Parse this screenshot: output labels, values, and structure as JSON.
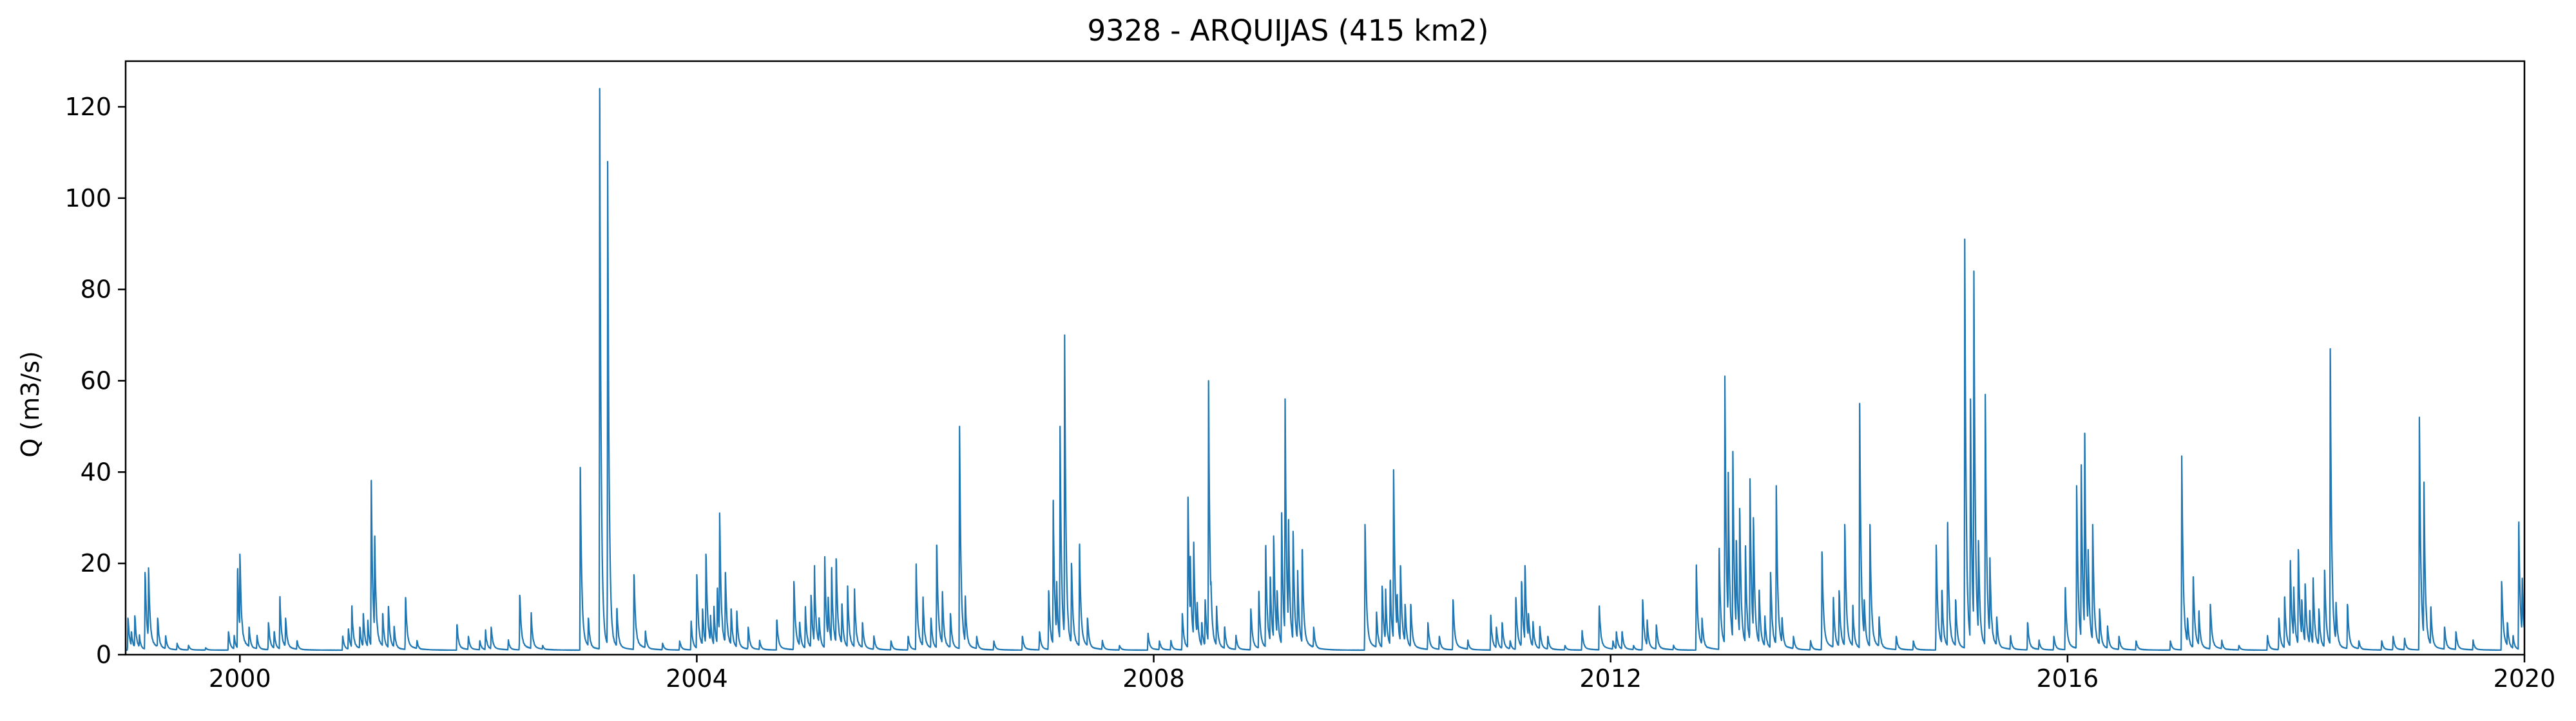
{
  "chart_data": {
    "type": "line",
    "title": "9328 - ARQUIJAS (415 km2)",
    "xlabel": "",
    "ylabel": "Q (m3/s)",
    "xlim": [
      1999.0,
      2020.0
    ],
    "ylim": [
      0,
      130
    ],
    "x_ticks": [
      2000,
      2004,
      2008,
      2012,
      2016,
      2020
    ],
    "x_tick_labels": [
      "2000",
      "2004",
      "2008",
      "2012",
      "2016",
      "2020"
    ],
    "y_ticks": [
      0,
      20,
      40,
      60,
      80,
      100,
      120
    ],
    "y_tick_labels": [
      "0",
      "20",
      "40",
      "60",
      "80",
      "100",
      "120"
    ],
    "grid": false,
    "legend": "none",
    "color": "#1f77b4",
    "baseflow": 1.0,
    "series": [
      {
        "peaks": [
          [
            1999.02,
            8
          ],
          [
            1999.05,
            5
          ],
          [
            1999.08,
            8.5
          ],
          [
            1999.12,
            4
          ],
          [
            1999.17,
            18
          ],
          [
            1999.2,
            19
          ],
          [
            1999.28,
            8
          ],
          [
            1999.35,
            4
          ],
          [
            1999.45,
            2.5
          ],
          [
            1999.55,
            2
          ],
          [
            1999.9,
            5
          ],
          [
            1999.95,
            4
          ],
          [
            1999.98,
            18
          ],
          [
            2000.0,
            22
          ],
          [
            2000.08,
            6
          ],
          [
            2000.15,
            4
          ],
          [
            2000.25,
            7
          ],
          [
            2000.3,
            5
          ],
          [
            2000.35,
            12
          ],
          [
            2000.4,
            8
          ],
          [
            2000.5,
            3
          ],
          [
            2000.9,
            4
          ],
          [
            2000.95,
            5.5
          ],
          [
            2000.98,
            10
          ],
          [
            2001.05,
            6
          ],
          [
            2001.08,
            9
          ],
          [
            2001.12,
            7
          ],
          [
            2001.15,
            38
          ],
          [
            2001.18,
            25
          ],
          [
            2001.25,
            9
          ],
          [
            2001.3,
            10.5
          ],
          [
            2001.35,
            6
          ],
          [
            2001.45,
            12.5
          ],
          [
            2001.55,
            3
          ],
          [
            1999.7,
            1.5
          ],
          [
            2001.9,
            6.5
          ],
          [
            2002.0,
            4
          ],
          [
            2002.1,
            3
          ],
          [
            2002.15,
            5
          ],
          [
            2002.2,
            6
          ],
          [
            2002.35,
            3
          ],
          [
            2002.45,
            13
          ],
          [
            2002.55,
            8.5
          ],
          [
            2002.65,
            2
          ],
          [
            2002.98,
            41
          ],
          [
            2003.05,
            8
          ],
          [
            2003.15,
            124
          ],
          [
            2003.22,
            108
          ],
          [
            2003.3,
            10
          ],
          [
            2003.45,
            17.5
          ],
          [
            2003.55,
            5
          ],
          [
            2003.7,
            2.5
          ],
          [
            2003.85,
            3
          ],
          [
            2003.95,
            7
          ],
          [
            2004.0,
            17.5
          ],
          [
            2004.05,
            10
          ],
          [
            2004.08,
            22
          ],
          [
            2004.12,
            8
          ],
          [
            2004.15,
            10
          ],
          [
            2004.18,
            14
          ],
          [
            2004.2,
            31
          ],
          [
            2004.25,
            18
          ],
          [
            2004.3,
            10
          ],
          [
            2004.35,
            9
          ],
          [
            2004.45,
            6
          ],
          [
            2004.55,
            3
          ],
          [
            2004.7,
            7.5
          ],
          [
            2004.85,
            16
          ],
          [
            2004.9,
            7
          ],
          [
            2004.95,
            10
          ],
          [
            2005.0,
            13
          ],
          [
            2005.03,
            17.5
          ],
          [
            2005.07,
            8
          ],
          [
            2005.12,
            20
          ],
          [
            2005.15,
            12
          ],
          [
            2005.18,
            18
          ],
          [
            2005.22,
            21
          ],
          [
            2005.27,
            11
          ],
          [
            2005.32,
            14
          ],
          [
            2005.38,
            13.5
          ],
          [
            2005.45,
            7
          ],
          [
            2005.55,
            4
          ],
          [
            2005.7,
            3
          ],
          [
            2005.85,
            4
          ],
          [
            2005.92,
            18.5
          ],
          [
            2005.98,
            12
          ],
          [
            2006.05,
            8
          ],
          [
            2006.1,
            24
          ],
          [
            2006.15,
            13
          ],
          [
            2006.22,
            9
          ],
          [
            2006.3,
            50
          ],
          [
            2006.35,
            12
          ],
          [
            2006.45,
            4
          ],
          [
            2006.6,
            3
          ],
          [
            2006.85,
            4
          ],
          [
            2007.0,
            5
          ],
          [
            2007.08,
            14
          ],
          [
            2007.12,
            33
          ],
          [
            2007.15,
            15
          ],
          [
            2007.18,
            50
          ],
          [
            2007.22,
            70
          ],
          [
            2007.28,
            20
          ],
          [
            2007.35,
            23
          ],
          [
            2007.42,
            8
          ],
          [
            2007.55,
            3
          ],
          [
            2007.7,
            2
          ],
          [
            2007.95,
            4.5
          ],
          [
            2008.05,
            3
          ],
          [
            2008.15,
            3
          ],
          [
            2008.25,
            9
          ],
          [
            2008.3,
            34.5
          ],
          [
            2008.32,
            20
          ],
          [
            2008.35,
            23.5
          ],
          [
            2008.38,
            11
          ],
          [
            2008.42,
            7
          ],
          [
            2008.45,
            12
          ],
          [
            2008.48,
            60
          ],
          [
            2008.5,
            16
          ],
          [
            2008.55,
            10
          ],
          [
            2008.62,
            6
          ],
          [
            2008.72,
            4
          ],
          [
            2008.85,
            10
          ],
          [
            2008.92,
            13
          ],
          [
            2008.98,
            23
          ],
          [
            2009.02,
            17
          ],
          [
            2009.05,
            26
          ],
          [
            2009.08,
            14
          ],
          [
            2009.12,
            30
          ],
          [
            2009.15,
            56
          ],
          [
            2009.18,
            29
          ],
          [
            2009.22,
            27
          ],
          [
            2009.26,
            17
          ],
          [
            2009.3,
            23
          ],
          [
            2009.4,
            6
          ],
          [
            2009.85,
            28.5
          ],
          [
            2009.95,
            9
          ],
          [
            2010.0,
            15
          ],
          [
            2010.03,
            13
          ],
          [
            2010.07,
            16
          ],
          [
            2010.1,
            40.5
          ],
          [
            2010.13,
            13
          ],
          [
            2010.16,
            19.5
          ],
          [
            2010.2,
            11
          ],
          [
            2010.25,
            11
          ],
          [
            2010.4,
            7
          ],
          [
            2010.5,
            4
          ],
          [
            2010.62,
            12
          ],
          [
            2010.75,
            3
          ],
          [
            2010.95,
            8
          ],
          [
            2011.0,
            6
          ],
          [
            2011.05,
            7
          ],
          [
            2011.12,
            3
          ],
          [
            2011.17,
            12.5
          ],
          [
            2011.22,
            16
          ],
          [
            2011.25,
            19.5
          ],
          [
            2011.28,
            9
          ],
          [
            2011.32,
            7
          ],
          [
            2011.38,
            6
          ],
          [
            2011.45,
            4
          ],
          [
            2011.6,
            2
          ],
          [
            2011.75,
            5
          ],
          [
            2011.9,
            10.5
          ],
          [
            2012.02,
            3
          ],
          [
            2012.05,
            5
          ],
          [
            2012.1,
            5
          ],
          [
            2012.2,
            2
          ],
          [
            2012.28,
            12
          ],
          [
            2012.32,
            7
          ],
          [
            2012.4,
            6.5
          ],
          [
            2012.55,
            2
          ],
          [
            2012.75,
            18.5
          ],
          [
            2012.8,
            8
          ],
          [
            2012.95,
            22
          ],
          [
            2013.0,
            61
          ],
          [
            2013.03,
            38
          ],
          [
            2013.07,
            44.5
          ],
          [
            2013.1,
            25
          ],
          [
            2013.13,
            32
          ],
          [
            2013.18,
            23
          ],
          [
            2013.22,
            38.5
          ],
          [
            2013.25,
            30
          ],
          [
            2013.3,
            14
          ],
          [
            2013.35,
            8
          ],
          [
            2013.4,
            18
          ],
          [
            2013.45,
            37
          ],
          [
            2013.5,
            8
          ],
          [
            2013.6,
            4
          ],
          [
            2013.75,
            3
          ],
          [
            2013.85,
            22.5
          ],
          [
            2013.95,
            12
          ],
          [
            2014.0,
            14
          ],
          [
            2014.05,
            28.5
          ],
          [
            2014.12,
            10
          ],
          [
            2014.18,
            55
          ],
          [
            2014.22,
            12
          ],
          [
            2014.27,
            28.5
          ],
          [
            2014.35,
            8
          ],
          [
            2014.5,
            4
          ],
          [
            2014.65,
            3
          ],
          [
            2014.85,
            24
          ],
          [
            2014.9,
            14
          ],
          [
            2014.95,
            28
          ],
          [
            2015.02,
            12
          ],
          [
            2015.1,
            91
          ],
          [
            2015.15,
            56
          ],
          [
            2015.18,
            84
          ],
          [
            2015.22,
            25
          ],
          [
            2015.28,
            57
          ],
          [
            2015.32,
            20
          ],
          [
            2015.38,
            8
          ],
          [
            2015.5,
            4
          ],
          [
            2015.65,
            7
          ],
          [
            2015.75,
            3
          ],
          [
            2015.88,
            4
          ],
          [
            2015.98,
            14
          ],
          [
            2016.08,
            37
          ],
          [
            2016.12,
            41
          ],
          [
            2016.15,
            48.5
          ],
          [
            2016.18,
            22
          ],
          [
            2016.22,
            28.5
          ],
          [
            2016.28,
            10
          ],
          [
            2016.35,
            6
          ],
          [
            2016.45,
            4
          ],
          [
            2016.6,
            3
          ],
          [
            2016.9,
            3
          ],
          [
            2017.0,
            43.5
          ],
          [
            2017.05,
            8
          ],
          [
            2017.1,
            17
          ],
          [
            2017.15,
            9
          ],
          [
            2017.25,
            11
          ],
          [
            2017.35,
            3
          ],
          [
            2017.5,
            2
          ],
          [
            2017.75,
            4
          ],
          [
            2017.85,
            8
          ],
          [
            2017.9,
            12.5
          ],
          [
            2017.95,
            19.5
          ],
          [
            2017.98,
            14
          ],
          [
            2018.02,
            23
          ],
          [
            2018.05,
            12
          ],
          [
            2018.08,
            15.5
          ],
          [
            2018.12,
            9
          ],
          [
            2018.15,
            16
          ],
          [
            2018.2,
            10
          ],
          [
            2018.25,
            18.5
          ],
          [
            2018.3,
            67
          ],
          [
            2018.35,
            11
          ],
          [
            2018.45,
            11
          ],
          [
            2018.55,
            3
          ],
          [
            2018.75,
            3
          ],
          [
            2018.85,
            4
          ],
          [
            2018.95,
            3.5
          ],
          [
            2019.08,
            52
          ],
          [
            2019.12,
            37
          ],
          [
            2019.18,
            10
          ],
          [
            2019.3,
            6
          ],
          [
            2019.4,
            5
          ],
          [
            2019.55,
            3
          ],
          [
            2019.8,
            16
          ],
          [
            2019.85,
            7
          ],
          [
            2019.9,
            4
          ],
          [
            2019.95,
            28
          ],
          [
            2019.98,
            16
          ],
          [
            2020.0,
            10
          ]
        ]
      }
    ]
  }
}
